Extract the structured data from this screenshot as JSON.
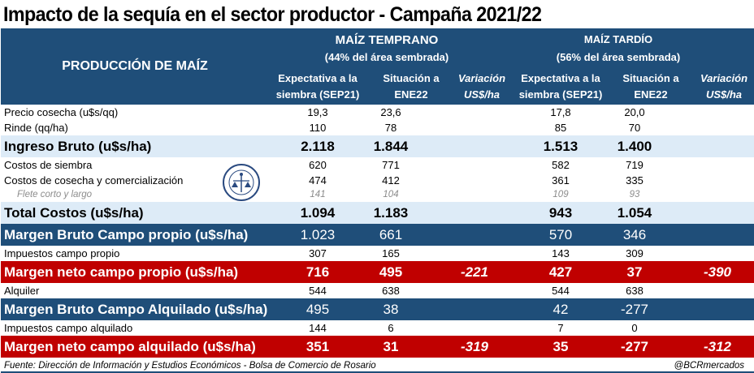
{
  "title": "Impacto de la sequía en el sector productor - Campaña 2021/22",
  "header": {
    "production_label": "PRODUCCIÓN DE MAÍZ",
    "groups": [
      {
        "title": "MAÍZ TEMPRANO",
        "subtitle": "(44% del área sembrada)"
      },
      {
        "title": "MAÍZ TARDÍO",
        "subtitle": "(56% del área sembrada)"
      }
    ],
    "columns": [
      {
        "line1": "Expectativa a la",
        "line2": "siembra (SEP21)"
      },
      {
        "line1": "Situación a",
        "line2": "ENE22"
      },
      {
        "line1": "Variación",
        "line2": "US$/ha"
      },
      {
        "line1": "Expectativa a la",
        "line2": "siembra (SEP21)"
      },
      {
        "line1": "Situación a",
        "line2": "ENE22"
      },
      {
        "line1": "Variación",
        "line2": "US$/ha"
      }
    ]
  },
  "rows": [
    {
      "label": "Precio cosecha (u$s/qq)",
      "values": [
        "19,3",
        "23,6",
        "",
        "17,8",
        "20,0",
        ""
      ]
    },
    {
      "label": "Rinde (qq/ha)",
      "values": [
        "110",
        "78",
        "",
        "85",
        "70",
        ""
      ]
    },
    {
      "label": "Ingreso Bruto (u$s/ha)",
      "values": [
        "2.118",
        "1.844",
        "",
        "1.513",
        "1.400",
        ""
      ]
    },
    {
      "label": "Costos de siembra",
      "values": [
        "620",
        "771",
        "",
        "582",
        "719",
        ""
      ]
    },
    {
      "label": "Costos de cosecha y comercialización",
      "values": [
        "474",
        "412",
        "",
        "361",
        "335",
        ""
      ]
    },
    {
      "label": "Flete corto y largo",
      "values": [
        "141",
        "104",
        "",
        "109",
        "93",
        ""
      ]
    },
    {
      "label": "Total Costos (u$s/ha)",
      "values": [
        "1.094",
        "1.183",
        "",
        "943",
        "1.054",
        ""
      ]
    },
    {
      "label": "Margen Bruto Campo propio (u$s/ha)",
      "values": [
        "1.023",
        "661",
        "",
        "570",
        "346",
        ""
      ]
    },
    {
      "label": "Impuestos campo propio",
      "values": [
        "307",
        "165",
        "",
        "143",
        "309",
        ""
      ]
    },
    {
      "label": "Margen neto campo propio (u$s/ha)",
      "values": [
        "716",
        "495",
        "-221",
        "427",
        "37",
        "-390"
      ]
    },
    {
      "label": "Alquiler",
      "values": [
        "544",
        "638",
        "",
        "544",
        "638",
        ""
      ]
    },
    {
      "label": "Margen Bruto Campo Alquilado (u$s/ha)",
      "values": [
        "495",
        "38",
        "",
        "42",
        "-277",
        ""
      ]
    },
    {
      "label": "Impuestos campo alquilado",
      "values": [
        "144",
        "6",
        "",
        "7",
        "0",
        ""
      ]
    },
    {
      "label": "Margen neto campo alquilado (u$s/ha)",
      "values": [
        "351",
        "31",
        "-319",
        "35",
        "-277",
        "-312"
      ]
    }
  ],
  "logo": {
    "name": "Bolsa de Comercio de Rosario seal"
  },
  "footer": {
    "source": "Fuente: Dirección de Información y Estudios Económicos - Bolsa de Comercio de Rosario",
    "handle": "@BCRmercados"
  },
  "colors": {
    "header_blue": "#1f4e79",
    "light_blue": "#ddebf7",
    "red": "#c00000"
  }
}
